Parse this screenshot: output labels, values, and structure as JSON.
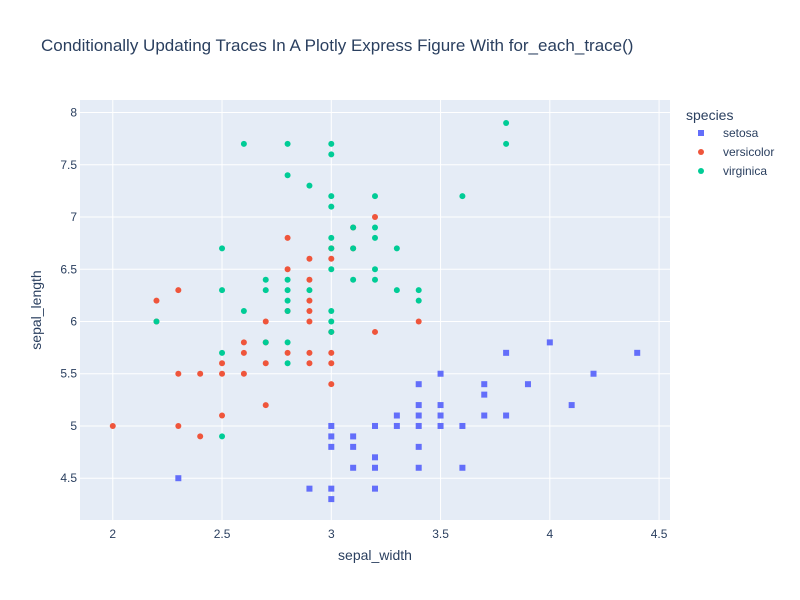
{
  "chart_data": {
    "type": "scatter",
    "title": "Conditionally Updating Traces In A Plotly Express Figure With for_each_trace()",
    "xlabel": "sepal_width",
    "ylabel": "sepal_length",
    "xlim": [
      1.85,
      4.55
    ],
    "ylim": [
      4.1,
      8.12
    ],
    "xticks": [
      "2",
      "2.5",
      "3",
      "3.5",
      "4",
      "4.5"
    ],
    "xtick_values": [
      2,
      2.5,
      3,
      3.5,
      4,
      4.5
    ],
    "yticks": [
      "4.5",
      "5",
      "5.5",
      "6",
      "6.5",
      "7",
      "7.5",
      "8"
    ],
    "ytick_values": [
      4.5,
      5,
      5.5,
      6,
      6.5,
      7,
      7.5,
      8
    ],
    "grid": true,
    "plot_background": "#e5ecf6",
    "legend": {
      "title": "species",
      "position": "top-right"
    },
    "series": [
      {
        "name": "setosa",
        "marker": "square",
        "color": "#636efa",
        "points": [
          [
            2.3,
            4.5
          ],
          [
            2.9,
            4.4
          ],
          [
            3.0,
            4.4
          ],
          [
            3.0,
            4.3
          ],
          [
            3.2,
            4.4
          ],
          [
            3.0,
            4.8
          ],
          [
            3.0,
            4.9
          ],
          [
            3.0,
            5.0
          ],
          [
            3.1,
            4.9
          ],
          [
            3.1,
            4.8
          ],
          [
            3.1,
            4.6
          ],
          [
            3.2,
            4.6
          ],
          [
            3.2,
            4.7
          ],
          [
            3.2,
            5.0
          ],
          [
            3.3,
            5.0
          ],
          [
            3.3,
            5.1
          ],
          [
            3.4,
            4.6
          ],
          [
            3.4,
            4.8
          ],
          [
            3.4,
            5.0
          ],
          [
            3.4,
            5.1
          ],
          [
            3.4,
            5.2
          ],
          [
            3.4,
            5.4
          ],
          [
            3.5,
            5.0
          ],
          [
            3.5,
            5.1
          ],
          [
            3.5,
            5.2
          ],
          [
            3.5,
            5.5
          ],
          [
            3.6,
            4.6
          ],
          [
            3.6,
            5.0
          ],
          [
            3.7,
            5.1
          ],
          [
            3.7,
            5.3
          ],
          [
            3.7,
            5.4
          ],
          [
            3.8,
            5.1
          ],
          [
            3.8,
            5.7
          ],
          [
            3.9,
            5.4
          ],
          [
            4.0,
            5.8
          ],
          [
            4.1,
            5.2
          ],
          [
            4.2,
            5.5
          ],
          [
            4.4,
            5.7
          ]
        ]
      },
      {
        "name": "versicolor",
        "marker": "circle",
        "color": "#ef553b",
        "points": [
          [
            2.0,
            5.0
          ],
          [
            2.2,
            6.2
          ],
          [
            2.2,
            6.0
          ],
          [
            2.3,
            6.3
          ],
          [
            2.3,
            5.5
          ],
          [
            2.3,
            5.0
          ],
          [
            2.4,
            5.5
          ],
          [
            2.4,
            4.9
          ],
          [
            2.5,
            5.6
          ],
          [
            2.5,
            5.5
          ],
          [
            2.5,
            5.1
          ],
          [
            2.6,
            5.8
          ],
          [
            2.6,
            5.7
          ],
          [
            2.6,
            5.5
          ],
          [
            2.7,
            6.0
          ],
          [
            2.7,
            5.8
          ],
          [
            2.7,
            5.6
          ],
          [
            2.7,
            5.2
          ],
          [
            2.8,
            6.8
          ],
          [
            2.8,
            6.5
          ],
          [
            2.8,
            6.1
          ],
          [
            2.8,
            5.7
          ],
          [
            2.9,
            6.6
          ],
          [
            2.9,
            6.4
          ],
          [
            2.9,
            6.2
          ],
          [
            2.9,
            6.1
          ],
          [
            2.9,
            6.0
          ],
          [
            2.9,
            5.7
          ],
          [
            2.9,
            5.6
          ],
          [
            3.0,
            6.7
          ],
          [
            3.0,
            6.6
          ],
          [
            3.0,
            5.9
          ],
          [
            3.0,
            5.7
          ],
          [
            3.0,
            5.6
          ],
          [
            3.0,
            5.4
          ],
          [
            3.1,
            6.9
          ],
          [
            3.1,
            6.7
          ],
          [
            3.2,
            7.0
          ],
          [
            3.2,
            5.9
          ],
          [
            3.4,
            6.0
          ]
        ]
      },
      {
        "name": "virginica",
        "marker": "circle",
        "color": "#00cc96",
        "points": [
          [
            2.2,
            6.0
          ],
          [
            2.5,
            6.7
          ],
          [
            2.5,
            6.3
          ],
          [
            2.5,
            5.7
          ],
          [
            2.5,
            4.9
          ],
          [
            2.6,
            7.7
          ],
          [
            2.6,
            6.1
          ],
          [
            2.7,
            6.4
          ],
          [
            2.7,
            6.3
          ],
          [
            2.7,
            5.8
          ],
          [
            2.8,
            7.7
          ],
          [
            2.8,
            7.4
          ],
          [
            2.8,
            6.4
          ],
          [
            2.8,
            6.3
          ],
          [
            2.8,
            6.2
          ],
          [
            2.8,
            6.1
          ],
          [
            2.8,
            5.8
          ],
          [
            2.8,
            5.6
          ],
          [
            2.9,
            7.3
          ],
          [
            2.9,
            6.3
          ],
          [
            3.0,
            7.7
          ],
          [
            3.0,
            7.6
          ],
          [
            3.0,
            7.2
          ],
          [
            3.0,
            7.1
          ],
          [
            3.0,
            6.8
          ],
          [
            3.0,
            6.7
          ],
          [
            3.0,
            6.5
          ],
          [
            3.0,
            6.1
          ],
          [
            3.0,
            6.0
          ],
          [
            3.0,
            5.9
          ],
          [
            3.1,
            6.9
          ],
          [
            3.1,
            6.7
          ],
          [
            3.1,
            6.4
          ],
          [
            3.2,
            7.2
          ],
          [
            3.2,
            6.9
          ],
          [
            3.2,
            6.8
          ],
          [
            3.2,
            6.5
          ],
          [
            3.2,
            6.4
          ],
          [
            3.3,
            6.7
          ],
          [
            3.3,
            6.3
          ],
          [
            3.4,
            6.3
          ],
          [
            3.4,
            6.2
          ],
          [
            3.6,
            7.2
          ],
          [
            3.8,
            7.9
          ],
          [
            3.8,
            7.7
          ]
        ]
      }
    ]
  }
}
